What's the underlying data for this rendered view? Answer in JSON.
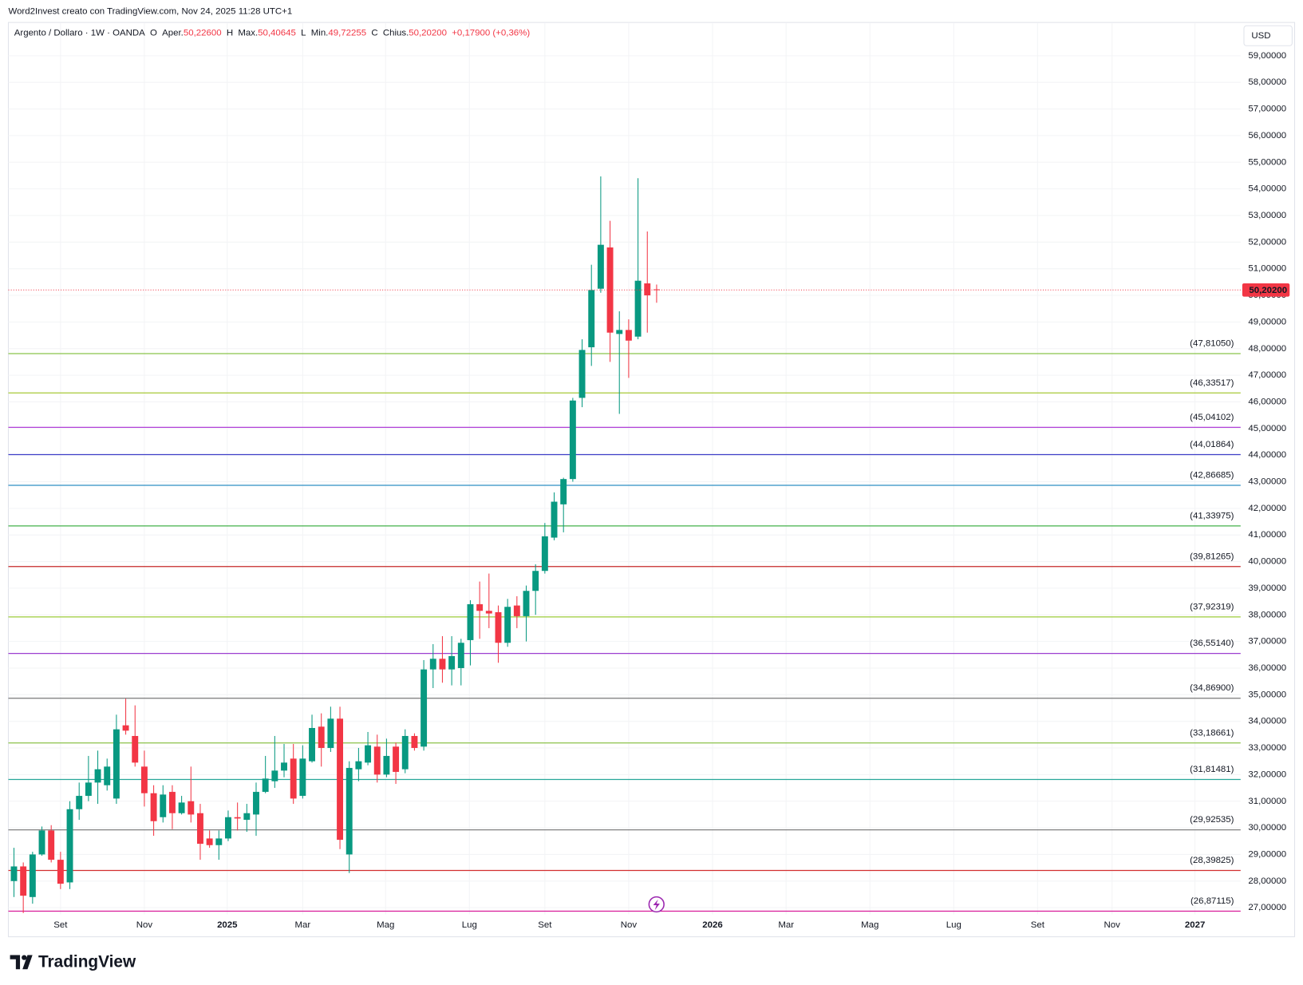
{
  "chart_data": {
    "type": "candlestick",
    "caption": "Word2Invest creato con TradingView.com, Nov 24, 2025 11:28 UTC+1",
    "header": {
      "symbol": "Argento / Dollaro · 1W · OANDA",
      "o": "O",
      "open_label": "Aper.",
      "open": "50,22600",
      "h": "H",
      "high_label": "Max.",
      "high": "50,40645",
      "l": "L",
      "low_label": "Min.",
      "low": "49,72255",
      "c": "C",
      "close_label": "Chius.",
      "close": "50,20200",
      "change": "+0,17900 (+0,36%)"
    },
    "currency": "USD",
    "brand": "TradingView",
    "up_color": "#089981",
    "down_color": "#f23645",
    "grid": true,
    "open": [
      28.0,
      28.55,
      27.4,
      29.0,
      29.9,
      28.8,
      27.95,
      30.7,
      31.2,
      31.7,
      31.6,
      31.1,
      33.85,
      33.45,
      32.3,
      31.3,
      30.4,
      31.35,
      30.55,
      31.0,
      30.55,
      29.6,
      29.35,
      29.6,
      30.4,
      30.3,
      30.5,
      31.35,
      31.75,
      32.15,
      32.6,
      31.2,
      32.5,
      33.8,
      33.0,
      34.1,
      29.0,
      32.2,
      32.45,
      33.05,
      32.0,
      33.05,
      32.2,
      33.45,
      33.05,
      35.95,
      36.35,
      35.95,
      36.0,
      37.05,
      38.4,
      38.15,
      38.1,
      36.95,
      38.35,
      37.95,
      38.9,
      39.65,
      40.9,
      42.15,
      43.1,
      46.15,
      48.05,
      50.25,
      51.8,
      48.55,
      48.7,
      48.45,
      50.45,
      50.226
    ],
    "high": [
      29.25,
      28.7,
      29.1,
      30.05,
      30.1,
      29.1,
      31.0,
      31.7,
      32.7,
      32.9,
      32.6,
      34.25,
      34.85,
      34.6,
      32.9,
      31.6,
      31.6,
      31.6,
      31.2,
      32.3,
      30.9,
      29.9,
      29.9,
      30.65,
      30.95,
      30.9,
      31.7,
      32.7,
      33.45,
      33.15,
      33.15,
      33.1,
      34.25,
      34.3,
      34.55,
      34.55,
      32.5,
      33.0,
      33.6,
      33.5,
      33.35,
      33.2,
      33.7,
      33.55,
      36.3,
      36.9,
      37.2,
      37.2,
      37.1,
      38.55,
      39.25,
      39.55,
      38.35,
      38.6,
      38.7,
      39.1,
      39.9,
      41.45,
      42.6,
      43.15,
      46.15,
      48.35,
      51.15,
      54.47,
      52.8,
      49.4,
      49.1,
      54.4,
      52.4,
      50.40645
    ],
    "low": [
      27.4,
      26.8,
      27.15,
      28.95,
      28.7,
      27.7,
      27.7,
      30.3,
      31.0,
      30.9,
      31.4,
      30.9,
      33.5,
      32.3,
      30.8,
      29.7,
      30.2,
      29.95,
      30.5,
      30.2,
      28.8,
      29.25,
      28.8,
      29.5,
      29.9,
      29.85,
      29.7,
      31.3,
      31.5,
      31.9,
      30.9,
      31.1,
      32.45,
      32.3,
      32.85,
      29.2,
      28.3,
      31.75,
      32.35,
      31.7,
      31.9,
      31.65,
      32.05,
      32.9,
      32.9,
      35.25,
      35.45,
      35.35,
      35.35,
      36.1,
      37.1,
      37.5,
      36.2,
      36.8,
      37.5,
      37.0,
      38.0,
      39.55,
      40.8,
      41.1,
      43.0,
      45.8,
      47.35,
      50.1,
      47.5,
      45.55,
      46.9,
      48.35,
      48.6,
      49.72255
    ],
    "close": [
      28.55,
      27.45,
      29.0,
      29.9,
      28.8,
      27.9,
      30.7,
      31.2,
      31.7,
      32.2,
      32.3,
      33.7,
      33.65,
      32.45,
      31.3,
      30.25,
      31.25,
      30.55,
      30.95,
      30.5,
      29.4,
      29.35,
      29.6,
      30.4,
      30.35,
      30.55,
      31.35,
      31.85,
      32.15,
      32.45,
      31.1,
      32.6,
      33.75,
      33.0,
      34.1,
      29.55,
      32.25,
      32.5,
      33.1,
      32.0,
      32.7,
      32.1,
      33.45,
      33.0,
      35.95,
      36.35,
      35.95,
      36.45,
      36.95,
      38.4,
      38.15,
      38.05,
      36.95,
      38.3,
      37.95,
      38.9,
      39.65,
      40.95,
      42.25,
      43.1,
      46.05,
      47.95,
      50.2,
      51.9,
      48.6,
      48.7,
      48.3,
      50.55,
      50.0,
      50.202
    ],
    "last_price": {
      "value": 50.202,
      "label": "50,20200",
      "color": "#f23645"
    },
    "levels": [
      {
        "value": 47.8105,
        "label": "(47,81050)",
        "color": "#8bc34a"
      },
      {
        "value": 46.33517,
        "label": "(46,33517)",
        "color": "#a8c936"
      },
      {
        "value": 45.04102,
        "label": "(45,04102)",
        "color": "#b040d8"
      },
      {
        "value": 44.01864,
        "label": "(44,01864)",
        "color": "#3f3fc8"
      },
      {
        "value": 42.86685,
        "label": "(42,86685)",
        "color": "#2e8fc4"
      },
      {
        "value": 41.33975,
        "label": "(41,33975)",
        "color": "#43b04a"
      },
      {
        "value": 39.81265,
        "label": "(39,81265)",
        "color": "#c62828"
      },
      {
        "value": 37.92319,
        "label": "(37,92319)",
        "color": "#9ccc3a"
      },
      {
        "value": 36.5514,
        "label": "(36,55140)",
        "color": "#9c3fd0"
      },
      {
        "value": 34.869,
        "label": "(34,86900)",
        "color": "#787878"
      },
      {
        "value": 33.18661,
        "label": "(33,18661)",
        "color": "#8bc34a"
      },
      {
        "value": 31.81481,
        "label": "(31,81481)",
        "color": "#26a69a"
      },
      {
        "value": 29.92535,
        "label": "(29,92535)",
        "color": "#808080"
      },
      {
        "value": 28.39825,
        "label": "(28,39825)",
        "color": "#d32f2f"
      },
      {
        "value": 26.87115,
        "label": "(26,87115)",
        "color": "#d81b9a"
      }
    ],
    "xlim": [
      -0.6,
      131.7
    ],
    "xticks": [
      {
        "value": 5.0,
        "label": "Set"
      },
      {
        "value": 14.0,
        "label": "Nov"
      },
      {
        "value": 22.9,
        "label": "2025"
      },
      {
        "value": 31.0,
        "label": "Mar"
      },
      {
        "value": 39.9,
        "label": "Mag"
      },
      {
        "value": 48.9,
        "label": "Lug"
      },
      {
        "value": 57.0,
        "label": "Set"
      },
      {
        "value": 66.0,
        "label": "Nov"
      },
      {
        "value": 75.0,
        "label": "2026"
      },
      {
        "value": 82.9,
        "label": "Mar"
      },
      {
        "value": 91.9,
        "label": "Mag"
      },
      {
        "value": 100.9,
        "label": "Lug"
      },
      {
        "value": 109.9,
        "label": "Set"
      },
      {
        "value": 117.9,
        "label": "Nov"
      },
      {
        "value": 126.8,
        "label": "2027"
      }
    ],
    "ylim": [
      26.75,
      60.22
    ],
    "yticks": [
      {
        "value": 27,
        "label": "27,00000"
      },
      {
        "value": 28,
        "label": "28,00000"
      },
      {
        "value": 29,
        "label": "29,00000"
      },
      {
        "value": 30,
        "label": "30,00000"
      },
      {
        "value": 31,
        "label": "31,00000"
      },
      {
        "value": 32,
        "label": "32,00000"
      },
      {
        "value": 33,
        "label": "33,00000"
      },
      {
        "value": 34,
        "label": "34,00000"
      },
      {
        "value": 35,
        "label": "35,00000"
      },
      {
        "value": 36,
        "label": "36,00000"
      },
      {
        "value": 37,
        "label": "37,00000"
      },
      {
        "value": 38,
        "label": "38,00000"
      },
      {
        "value": 39,
        "label": "39,00000"
      },
      {
        "value": 40,
        "label": "40,00000"
      },
      {
        "value": 41,
        "label": "41,00000"
      },
      {
        "value": 42,
        "label": "42,00000"
      },
      {
        "value": 43,
        "label": "43,00000"
      },
      {
        "value": 44,
        "label": "44,00000"
      },
      {
        "value": 45,
        "label": "45,00000"
      },
      {
        "value": 46,
        "label": "46,00000"
      },
      {
        "value": 47,
        "label": "47,00000"
      },
      {
        "value": 48,
        "label": "48,00000"
      },
      {
        "value": 49,
        "label": "49,00000"
      },
      {
        "value": 50,
        "label": "50,00000"
      },
      {
        "value": 51,
        "label": "51,00000"
      },
      {
        "value": 52,
        "label": "52,00000"
      },
      {
        "value": 53,
        "label": "53,00000"
      },
      {
        "value": 54,
        "label": "54,00000"
      },
      {
        "value": 55,
        "label": "55,00000"
      },
      {
        "value": 56,
        "label": "56,00000"
      },
      {
        "value": 57,
        "label": "57,00000"
      },
      {
        "value": 58,
        "label": "58,00000"
      },
      {
        "value": 59,
        "label": "59,00000"
      }
    ]
  }
}
